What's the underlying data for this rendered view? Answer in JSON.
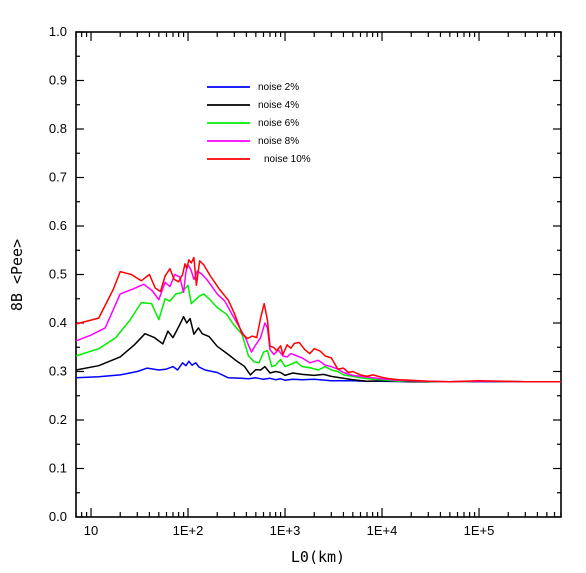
{
  "chart_data": {
    "type": "line",
    "title": "",
    "xlabel": "L0(km)",
    "ylabel": "8B <Pee>",
    "xscale": "log",
    "xlim": [
      7,
      700000
    ],
    "ylim": [
      0.0,
      1.0
    ],
    "yticks": [
      "0.0",
      "0.1",
      "0.2",
      "0.3",
      "0.4",
      "0.5",
      "0.6",
      "0.7",
      "0.8",
      "0.9",
      "1.0"
    ],
    "xticks": [
      {
        "value": 10,
        "label": "10"
      },
      {
        "value": 100,
        "label": "1E+2"
      },
      {
        "value": 1000,
        "label": "1E+3"
      },
      {
        "value": 10000,
        "label": "1E+4"
      },
      {
        "value": 100000,
        "label": "1E+5"
      }
    ],
    "grid": false,
    "legend_position": "top-left inside",
    "series": [
      {
        "name": "noise 2%",
        "color": "#0000ff",
        "points": [
          [
            7,
            0.287
          ],
          [
            12,
            0.289
          ],
          [
            20,
            0.293
          ],
          [
            30,
            0.3
          ],
          [
            38,
            0.307
          ],
          [
            50,
            0.303
          ],
          [
            60,
            0.305
          ],
          [
            70,
            0.31
          ],
          [
            78,
            0.303
          ],
          [
            88,
            0.318
          ],
          [
            95,
            0.312
          ],
          [
            102,
            0.321
          ],
          [
            110,
            0.313
          ],
          [
            120,
            0.318
          ],
          [
            130,
            0.309
          ],
          [
            150,
            0.303
          ],
          [
            200,
            0.298
          ],
          [
            260,
            0.287
          ],
          [
            350,
            0.286
          ],
          [
            420,
            0.285
          ],
          [
            500,
            0.287
          ],
          [
            600,
            0.284
          ],
          [
            700,
            0.286
          ],
          [
            800,
            0.283
          ],
          [
            900,
            0.285
          ],
          [
            1000,
            0.282
          ],
          [
            1200,
            0.284
          ],
          [
            1500,
            0.283
          ],
          [
            2000,
            0.284
          ],
          [
            3000,
            0.281
          ],
          [
            5000,
            0.281
          ],
          [
            7000,
            0.28
          ],
          [
            10000,
            0.28
          ],
          [
            20000,
            0.279
          ],
          [
            50000,
            0.279
          ],
          [
            100000,
            0.279
          ],
          [
            300000,
            0.279
          ],
          [
            700000,
            0.279
          ]
        ]
      },
      {
        "name": "noise 4%",
        "color": "#000000",
        "points": [
          [
            7,
            0.303
          ],
          [
            12,
            0.312
          ],
          [
            20,
            0.33
          ],
          [
            28,
            0.355
          ],
          [
            36,
            0.378
          ],
          [
            45,
            0.37
          ],
          [
            55,
            0.357
          ],
          [
            62,
            0.383
          ],
          [
            70,
            0.37
          ],
          [
            80,
            0.392
          ],
          [
            90,
            0.413
          ],
          [
            97,
            0.4
          ],
          [
            105,
            0.409
          ],
          [
            115,
            0.377
          ],
          [
            128,
            0.39
          ],
          [
            140,
            0.378
          ],
          [
            165,
            0.372
          ],
          [
            200,
            0.352
          ],
          [
            260,
            0.335
          ],
          [
            320,
            0.321
          ],
          [
            380,
            0.311
          ],
          [
            440,
            0.293
          ],
          [
            500,
            0.304
          ],
          [
            560,
            0.303
          ],
          [
            620,
            0.31
          ],
          [
            700,
            0.297
          ],
          [
            800,
            0.3
          ],
          [
            900,
            0.298
          ],
          [
            1000,
            0.292
          ],
          [
            1200,
            0.297
          ],
          [
            1500,
            0.294
          ],
          [
            2000,
            0.292
          ],
          [
            2500,
            0.294
          ],
          [
            3000,
            0.29
          ],
          [
            4000,
            0.286
          ],
          [
            5000,
            0.283
          ],
          [
            7000,
            0.28
          ],
          [
            10000,
            0.281
          ],
          [
            20000,
            0.279
          ],
          [
            50000,
            0.279
          ],
          [
            100000,
            0.28
          ],
          [
            300000,
            0.279
          ],
          [
            700000,
            0.279
          ]
        ]
      },
      {
        "name": "noise 6%",
        "color": "#00ee00",
        "points": [
          [
            7,
            0.332
          ],
          [
            12,
            0.347
          ],
          [
            18,
            0.37
          ],
          [
            25,
            0.405
          ],
          [
            33,
            0.442
          ],
          [
            42,
            0.44
          ],
          [
            50,
            0.407
          ],
          [
            58,
            0.45
          ],
          [
            65,
            0.445
          ],
          [
            75,
            0.46
          ],
          [
            85,
            0.462
          ],
          [
            95,
            0.473
          ],
          [
            100,
            0.478
          ],
          [
            108,
            0.44
          ],
          [
            118,
            0.447
          ],
          [
            130,
            0.455
          ],
          [
            145,
            0.46
          ],
          [
            165,
            0.45
          ],
          [
            200,
            0.432
          ],
          [
            250,
            0.418
          ],
          [
            300,
            0.395
          ],
          [
            360,
            0.377
          ],
          [
            420,
            0.332
          ],
          [
            480,
            0.32
          ],
          [
            540,
            0.318
          ],
          [
            600,
            0.34
          ],
          [
            660,
            0.343
          ],
          [
            730,
            0.31
          ],
          [
            800,
            0.313
          ],
          [
            900,
            0.325
          ],
          [
            1000,
            0.31
          ],
          [
            1100,
            0.313
          ],
          [
            1300,
            0.32
          ],
          [
            1500,
            0.31
          ],
          [
            1800,
            0.308
          ],
          [
            2200,
            0.303
          ],
          [
            2600,
            0.31
          ],
          [
            3000,
            0.303
          ],
          [
            3500,
            0.3
          ],
          [
            4000,
            0.293
          ],
          [
            5000,
            0.29
          ],
          [
            6000,
            0.287
          ],
          [
            8000,
            0.284
          ],
          [
            10000,
            0.283
          ],
          [
            15000,
            0.28
          ],
          [
            20000,
            0.281
          ],
          [
            40000,
            0.279
          ],
          [
            70000,
            0.279
          ],
          [
            100000,
            0.28
          ],
          [
            300000,
            0.279
          ],
          [
            700000,
            0.279
          ]
        ]
      },
      {
        "name": "noise 8%",
        "color": "#ff00ff",
        "points": [
          [
            7,
            0.363
          ],
          [
            10,
            0.375
          ],
          [
            14,
            0.39
          ],
          [
            20,
            0.46
          ],
          [
            27,
            0.47
          ],
          [
            35,
            0.48
          ],
          [
            43,
            0.466
          ],
          [
            50,
            0.448
          ],
          [
            58,
            0.484
          ],
          [
            65,
            0.475
          ],
          [
            73,
            0.5
          ],
          [
            82,
            0.495
          ],
          [
            90,
            0.463
          ],
          [
            95,
            0.505
          ],
          [
            100,
            0.52
          ],
          [
            107,
            0.51
          ],
          [
            115,
            0.49
          ],
          [
            125,
            0.507
          ],
          [
            140,
            0.5
          ],
          [
            160,
            0.487
          ],
          [
            200,
            0.46
          ],
          [
            240,
            0.445
          ],
          [
            280,
            0.42
          ],
          [
            330,
            0.395
          ],
          [
            390,
            0.37
          ],
          [
            450,
            0.34
          ],
          [
            500,
            0.355
          ],
          [
            560,
            0.37
          ],
          [
            620,
            0.4
          ],
          [
            660,
            0.39
          ],
          [
            700,
            0.345
          ],
          [
            770,
            0.335
          ],
          [
            850,
            0.345
          ],
          [
            950,
            0.332
          ],
          [
            1050,
            0.33
          ],
          [
            1150,
            0.337
          ],
          [
            1300,
            0.333
          ],
          [
            1500,
            0.328
          ],
          [
            1800,
            0.318
          ],
          [
            2200,
            0.323
          ],
          [
            2600,
            0.313
          ],
          [
            3000,
            0.31
          ],
          [
            3500,
            0.305
          ],
          [
            4000,
            0.298
          ],
          [
            5000,
            0.292
          ],
          [
            6000,
            0.29
          ],
          [
            8000,
            0.287
          ],
          [
            10000,
            0.285
          ],
          [
            14000,
            0.282
          ],
          [
            20000,
            0.281
          ],
          [
            30000,
            0.28
          ],
          [
            50000,
            0.279
          ],
          [
            100000,
            0.28
          ],
          [
            300000,
            0.279
          ],
          [
            700000,
            0.279
          ]
        ]
      },
      {
        "name": "noise 10%",
        "color": "#ff0000",
        "points": [
          [
            7,
            0.398
          ],
          [
            12,
            0.41
          ],
          [
            17,
            0.47
          ],
          [
            20,
            0.506
          ],
          [
            26,
            0.5
          ],
          [
            33,
            0.487
          ],
          [
            40,
            0.5
          ],
          [
            46,
            0.472
          ],
          [
            52,
            0.465
          ],
          [
            58,
            0.497
          ],
          [
            65,
            0.512
          ],
          [
            72,
            0.49
          ],
          [
            80,
            0.485
          ],
          [
            88,
            0.5
          ],
          [
            93,
            0.522
          ],
          [
            97,
            0.513
          ],
          [
            102,
            0.53
          ],
          [
            108,
            0.524
          ],
          [
            115,
            0.535
          ],
          [
            122,
            0.478
          ],
          [
            132,
            0.528
          ],
          [
            145,
            0.52
          ],
          [
            170,
            0.497
          ],
          [
            210,
            0.47
          ],
          [
            260,
            0.447
          ],
          [
            300,
            0.42
          ],
          [
            360,
            0.378
          ],
          [
            410,
            0.368
          ],
          [
            460,
            0.373
          ],
          [
            510,
            0.37
          ],
          [
            560,
            0.41
          ],
          [
            610,
            0.44
          ],
          [
            660,
            0.405
          ],
          [
            700,
            0.352
          ],
          [
            760,
            0.35
          ],
          [
            820,
            0.343
          ],
          [
            900,
            0.353
          ],
          [
            950,
            0.335
          ],
          [
            1050,
            0.355
          ],
          [
            1150,
            0.348
          ],
          [
            1250,
            0.358
          ],
          [
            1400,
            0.36
          ],
          [
            1600,
            0.345
          ],
          [
            1800,
            0.337
          ],
          [
            2000,
            0.347
          ],
          [
            2300,
            0.342
          ],
          [
            2600,
            0.332
          ],
          [
            3000,
            0.328
          ],
          [
            3500,
            0.305
          ],
          [
            4000,
            0.307
          ],
          [
            4500,
            0.298
          ],
          [
            5000,
            0.3
          ],
          [
            6000,
            0.293
          ],
          [
            7000,
            0.29
          ],
          [
            8000,
            0.293
          ],
          [
            10000,
            0.288
          ],
          [
            12000,
            0.285
          ],
          [
            15000,
            0.283
          ],
          [
            20000,
            0.282
          ],
          [
            30000,
            0.28
          ],
          [
            50000,
            0.279
          ],
          [
            100000,
            0.281
          ],
          [
            300000,
            0.279
          ],
          [
            700000,
            0.279
          ]
        ]
      }
    ]
  }
}
